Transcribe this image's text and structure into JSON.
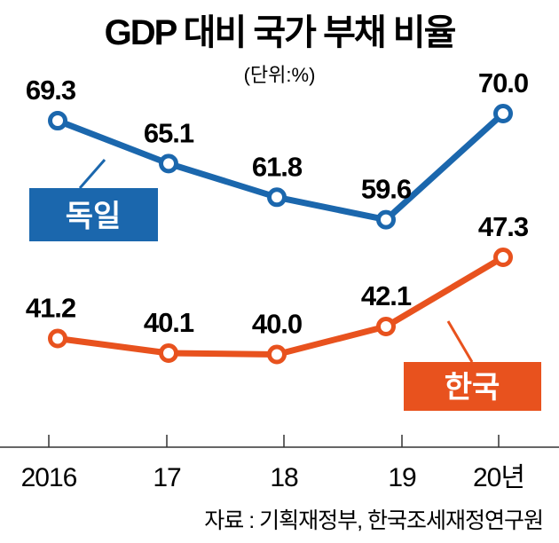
{
  "chart_data": {
    "type": "line",
    "title": "GDP 대비 국가 부채 비율",
    "unit": "(단위:%)",
    "categories": [
      "2016",
      "17",
      "18",
      "19",
      "20년"
    ],
    "series": [
      {
        "name": "독일",
        "color": "#1b67ad",
        "values": [
          69.3,
          65.1,
          61.8,
          59.6,
          70.0
        ],
        "labels": [
          "69.3",
          "65.1",
          "61.8",
          "59.6",
          "70.0"
        ]
      },
      {
        "name": "한국",
        "color": "#e8521e",
        "values": [
          41.2,
          40.1,
          40.0,
          42.1,
          47.3
        ],
        "labels": [
          "41.2",
          "40.1",
          "40.0",
          "42.1",
          "47.3"
        ]
      }
    ],
    "source": "자료 : 기획재정부, 한국조세재정연구원",
    "grid": false,
    "legend": "inline-labels"
  }
}
